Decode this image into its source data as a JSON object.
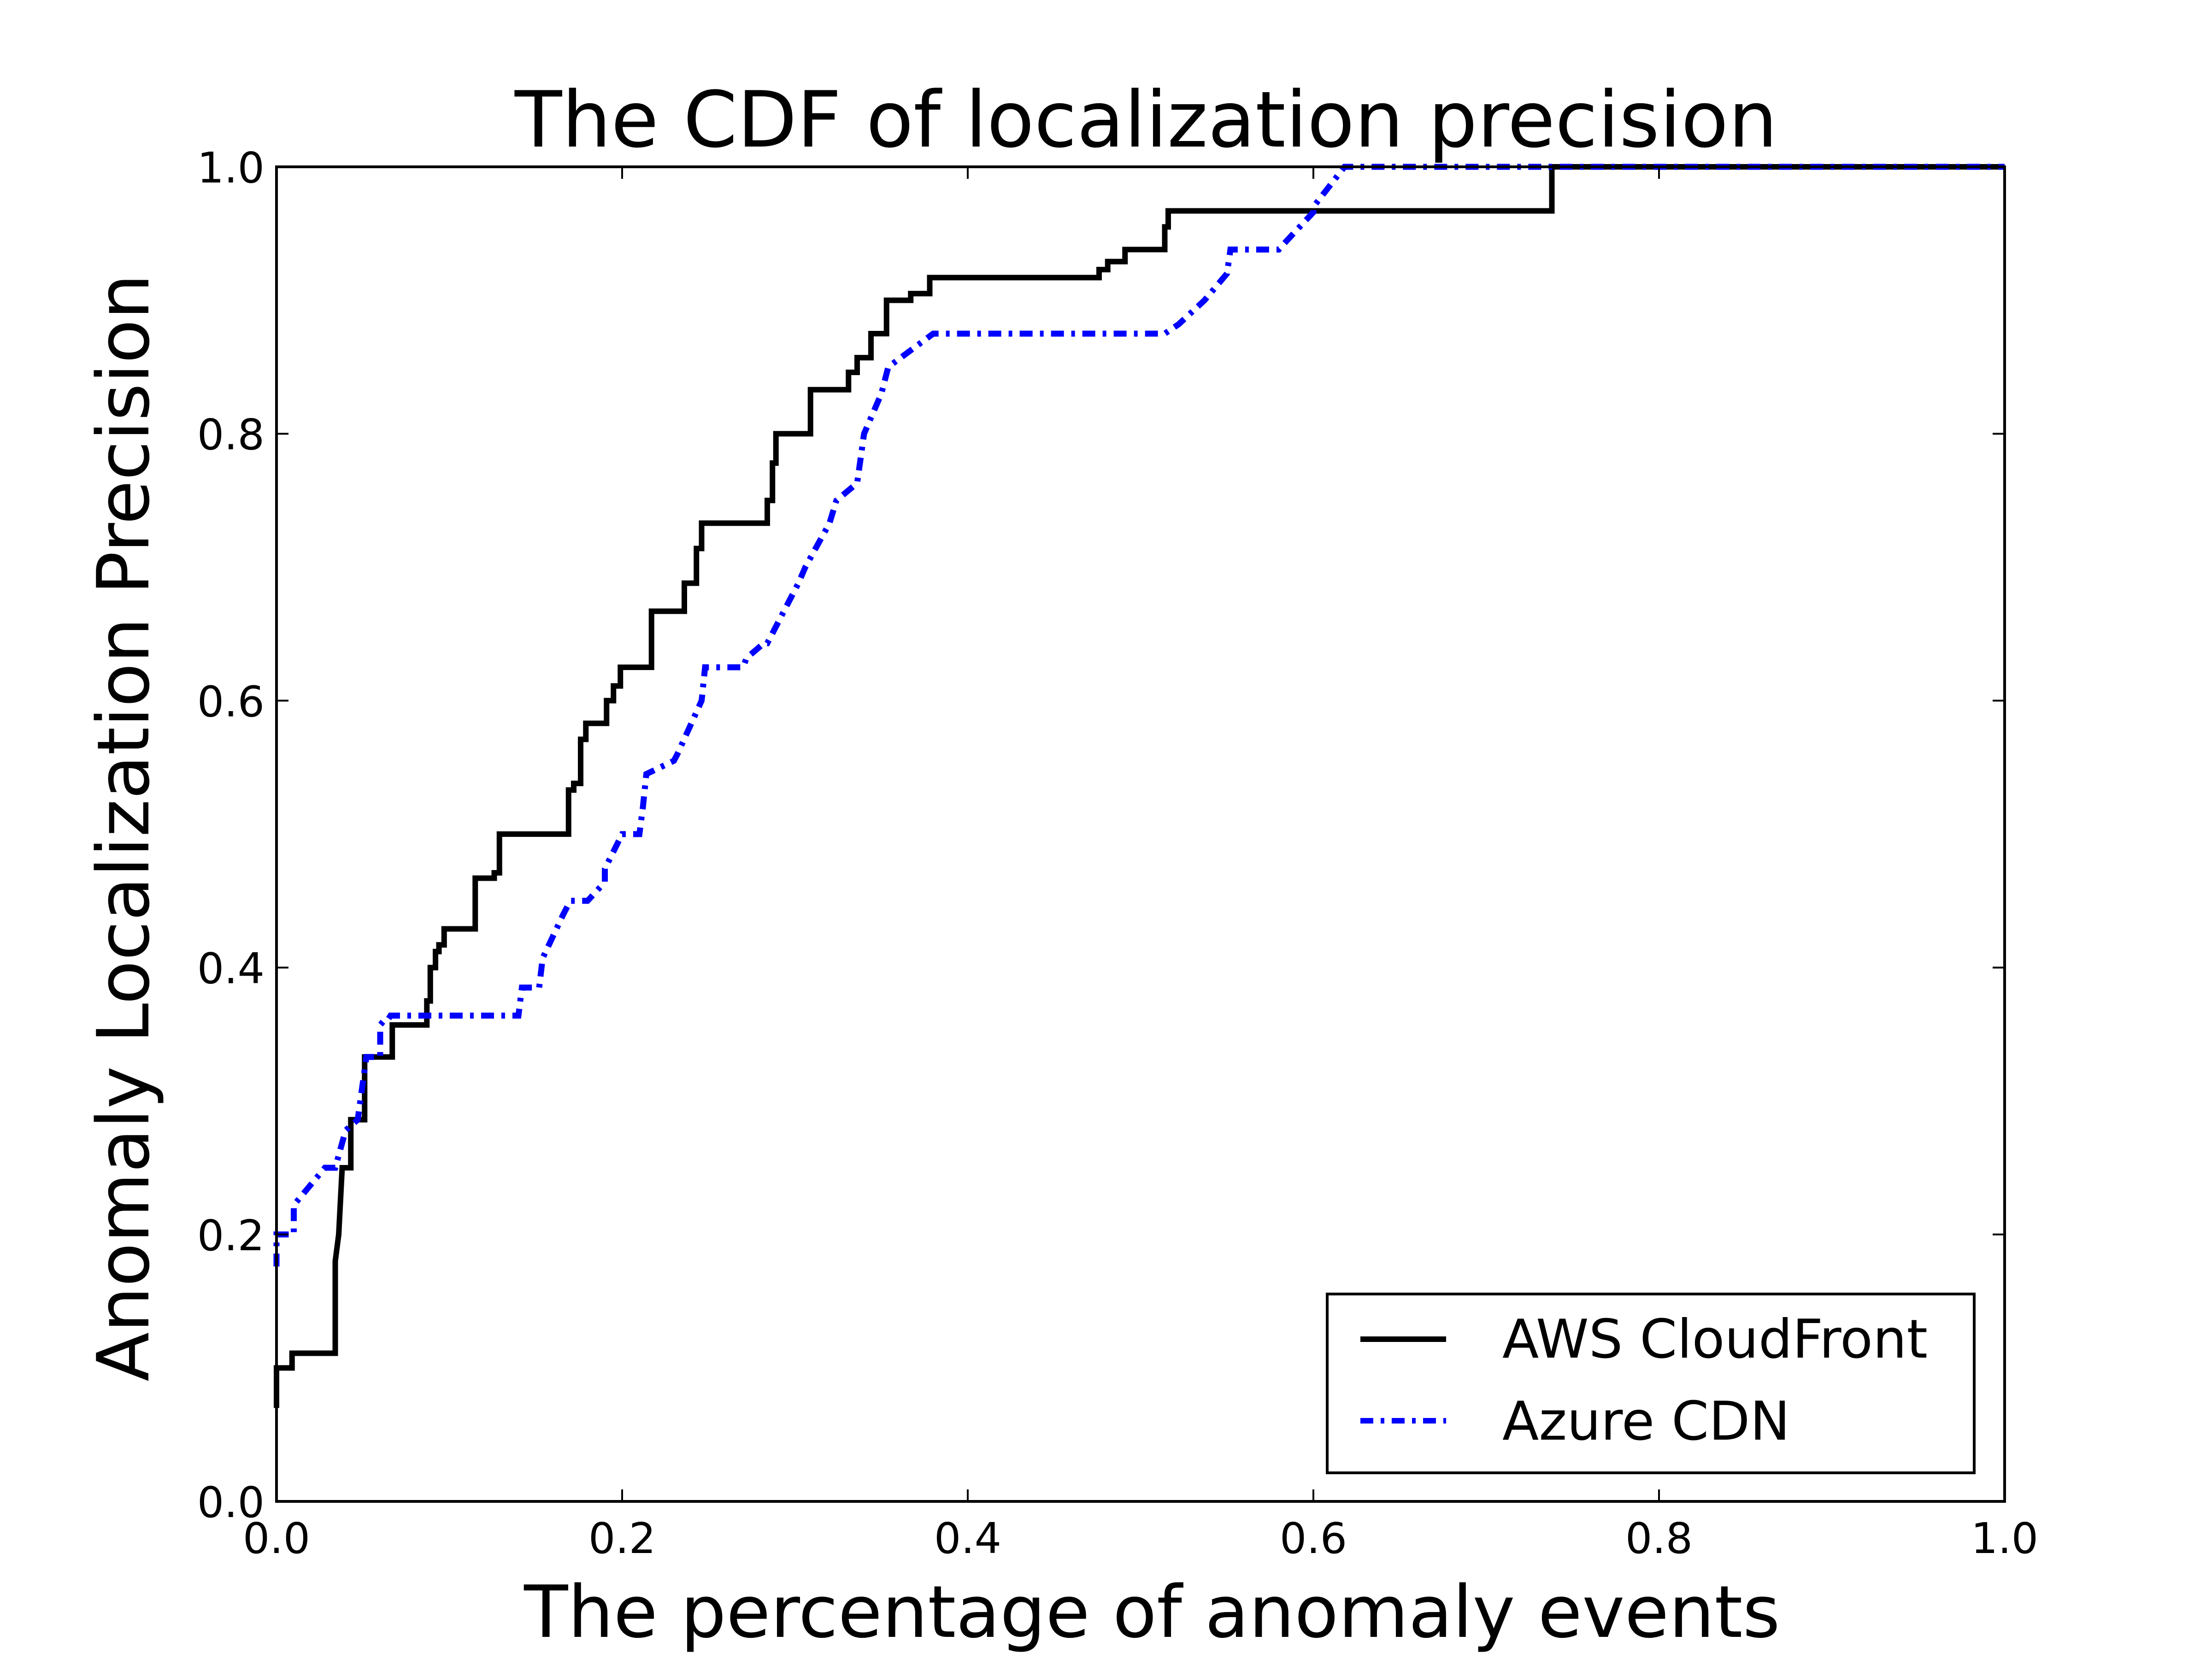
{
  "chart_data": {
    "type": "line",
    "title": "The CDF of localization precision",
    "xlabel": "The percentage of anomaly events",
    "ylabel": "Anomaly Localization Precision",
    "xlim": [
      0.0,
      1.0
    ],
    "ylim": [
      0.0,
      1.0
    ],
    "x_ticks": [
      "0.0",
      "0.2",
      "0.4",
      "0.6",
      "0.8",
      "1.0"
    ],
    "y_ticks": [
      "0.0",
      "0.2",
      "0.4",
      "0.6",
      "0.8",
      "1.0"
    ],
    "grid": false,
    "legend": {
      "position": "bottom-right",
      "entries": [
        "AWS CloudFront",
        "Azure CDN"
      ]
    },
    "series": [
      {
        "name": "AWS CloudFront",
        "color": "#000000",
        "line_style": "solid",
        "x": [
          0.0,
          0.0,
          0.003,
          0.003,
          0.009,
          0.009,
          0.034,
          0.034,
          0.036,
          0.038,
          0.041,
          0.043,
          0.043,
          0.046,
          0.046,
          0.051,
          0.051,
          0.058,
          0.058,
          0.067,
          0.067,
          0.074,
          0.074,
          0.087,
          0.087,
          0.089,
          0.089,
          0.092,
          0.092,
          0.094,
          0.094,
          0.097,
          0.097,
          0.102,
          0.102,
          0.115,
          0.115,
          0.124,
          0.124,
          0.126,
          0.126,
          0.129,
          0.129,
          0.169,
          0.169,
          0.172,
          0.172,
          0.176,
          0.176,
          0.179,
          0.179,
          0.182,
          0.182,
          0.191,
          0.191,
          0.195,
          0.195,
          0.199,
          0.199,
          0.214,
          0.214,
          0.217,
          0.217,
          0.236,
          0.236,
          0.243,
          0.243,
          0.246,
          0.246,
          0.284,
          0.284,
          0.287,
          0.287,
          0.289,
          0.289,
          0.306,
          0.306,
          0.309,
          0.309,
          0.331,
          0.331,
          0.336,
          0.336,
          0.342,
          0.342,
          0.344,
          0.344,
          0.352,
          0.352,
          0.353,
          0.353,
          0.367,
          0.367,
          0.378,
          0.378,
          0.476,
          0.476,
          0.481,
          0.481,
          0.491,
          0.491,
          0.514,
          0.514,
          0.516,
          0.516,
          0.738,
          0.738,
          1.0
        ],
        "y": [
          0.07,
          0.1,
          0.1,
          0.1,
          0.1,
          0.111,
          0.111,
          0.18,
          0.2,
          0.25,
          0.25,
          0.25,
          0.286,
          0.286,
          0.286,
          0.286,
          0.333,
          0.333,
          0.333,
          0.333,
          0.357,
          0.357,
          0.357,
          0.357,
          0.375,
          0.375,
          0.4,
          0.4,
          0.412,
          0.412,
          0.417,
          0.417,
          0.429,
          0.429,
          0.429,
          0.429,
          0.467,
          0.467,
          0.467,
          0.467,
          0.471,
          0.471,
          0.5,
          0.5,
          0.533,
          0.533,
          0.538,
          0.538,
          0.571,
          0.571,
          0.583,
          0.583,
          0.583,
          0.583,
          0.6,
          0.6,
          0.611,
          0.611,
          0.625,
          0.625,
          0.625,
          0.625,
          0.667,
          0.667,
          0.688,
          0.688,
          0.714,
          0.714,
          0.733,
          0.733,
          0.75,
          0.75,
          0.778,
          0.778,
          0.8,
          0.8,
          0.8,
          0.8,
          0.833,
          0.833,
          0.846,
          0.846,
          0.857,
          0.857,
          0.857,
          0.857,
          0.875,
          0.875,
          0.875,
          0.875,
          0.9,
          0.9,
          0.905,
          0.905,
          0.917,
          0.917,
          0.923,
          0.923,
          0.929,
          0.929,
          0.938,
          0.938,
          0.955,
          0.955,
          0.967,
          0.967,
          1.0,
          1.0
        ]
      },
      {
        "name": "Azure CDN",
        "color": "#0000FF",
        "line_style": "dash-dot",
        "x": [
          0.0,
          0.0,
          0.01,
          0.01,
          0.028,
          0.034,
          0.04,
          0.047,
          0.052,
          0.06,
          0.06,
          0.062,
          0.064,
          0.066,
          0.068,
          0.14,
          0.142,
          0.152,
          0.154,
          0.166,
          0.17,
          0.18,
          0.19,
          0.19,
          0.2,
          0.21,
          0.212,
          0.214,
          0.23,
          0.232,
          0.246,
          0.248,
          0.27,
          0.272,
          0.282,
          0.284,
          0.302,
          0.306,
          0.32,
          0.324,
          0.336,
          0.34,
          0.35,
          0.354,
          0.38,
          0.514,
          0.522,
          0.537,
          0.55,
          0.552,
          0.58,
          0.582,
          0.6,
          0.6,
          0.618,
          1.0
        ],
        "y": [
          0.176,
          0.2,
          0.2,
          0.222,
          0.25,
          0.25,
          0.278,
          0.286,
          0.333,
          0.333,
          0.357,
          0.36,
          0.36,
          0.364,
          0.364,
          0.364,
          0.385,
          0.385,
          0.407,
          0.44,
          0.45,
          0.45,
          0.464,
          0.474,
          0.5,
          0.5,
          0.52,
          0.545,
          0.555,
          0.56,
          0.6,
          0.625,
          0.625,
          0.632,
          0.643,
          0.643,
          0.688,
          0.7,
          0.733,
          0.75,
          0.763,
          0.8,
          0.83,
          0.85,
          0.875,
          0.875,
          0.882,
          0.9,
          0.92,
          0.938,
          0.938,
          0.941,
          0.966,
          0.97,
          1.0,
          1.0
        ]
      }
    ]
  }
}
